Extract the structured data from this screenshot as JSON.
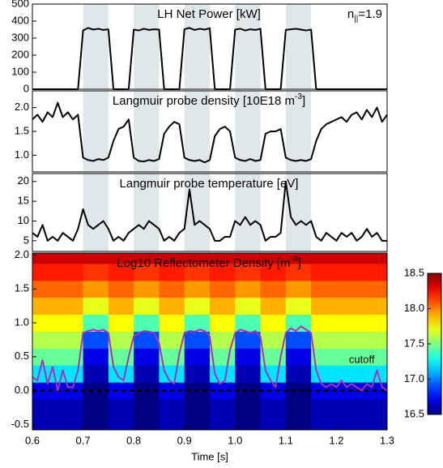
{
  "chart_data": [
    {
      "type": "line",
      "title": "LH Net Power [kW]",
      "annotation": {
        "text": "n",
        "subscript": "||",
        "suffix": "=1.9"
      },
      "xlim": [
        0.6,
        1.3
      ],
      "ylim": [
        0,
        500
      ],
      "yticks": [
        0,
        100,
        200,
        300,
        400,
        500
      ],
      "shaded": [
        [
          0.7,
          0.75
        ],
        [
          0.8,
          0.85
        ],
        [
          0.9,
          0.95
        ],
        [
          1.0,
          1.05
        ],
        [
          1.1,
          1.15
        ]
      ],
      "shade_color": "#dfe7ea",
      "x": [
        0.6,
        0.61,
        0.62,
        0.63,
        0.64,
        0.65,
        0.66,
        0.67,
        0.68,
        0.69,
        0.7,
        0.71,
        0.72,
        0.73,
        0.74,
        0.75,
        0.76,
        0.77,
        0.78,
        0.79,
        0.8,
        0.81,
        0.82,
        0.83,
        0.84,
        0.85,
        0.86,
        0.87,
        0.88,
        0.89,
        0.9,
        0.91,
        0.92,
        0.93,
        0.94,
        0.95,
        0.96,
        0.97,
        0.98,
        0.99,
        1.0,
        1.01,
        1.02,
        1.03,
        1.04,
        1.05,
        1.06,
        1.07,
        1.08,
        1.09,
        1.1,
        1.11,
        1.12,
        1.13,
        1.14,
        1.15,
        1.16,
        1.17,
        1.18,
        1.19,
        1.2,
        1.21,
        1.22,
        1.23,
        1.24,
        1.25,
        1.26,
        1.27,
        1.28,
        1.29,
        1.3
      ],
      "series": [
        {
          "color": "#000000",
          "values": [
            0,
            0,
            0,
            0,
            0,
            0,
            0,
            0,
            0,
            0,
            345,
            360,
            350,
            355,
            348,
            352,
            0,
            0,
            0,
            0,
            350,
            345,
            355,
            348,
            352,
            350,
            0,
            0,
            0,
            0,
            352,
            360,
            348,
            355,
            350,
            358,
            0,
            0,
            0,
            0,
            350,
            355,
            345,
            352,
            348,
            355,
            0,
            0,
            0,
            0,
            348,
            352,
            355,
            350,
            345,
            350,
            0,
            0,
            0,
            0,
            0,
            0,
            0,
            0,
            0,
            0,
            0,
            0,
            0,
            0,
            0
          ]
        }
      ]
    },
    {
      "type": "line",
      "title": {
        "text": "Langmuir probe density [10E18 m",
        "superscript": "-3",
        "suffix": "]"
      },
      "xlim": [
        0.6,
        1.3
      ],
      "ylim": [
        0.65,
        2.35
      ],
      "yticks": [
        {
          "value": 1,
          "label": "1.0"
        },
        1.5,
        {
          "value": 2,
          "label": "2.0"
        }
      ],
      "shaded": [
        [
          0.7,
          0.75
        ],
        [
          0.8,
          0.85
        ],
        [
          0.9,
          0.95
        ],
        [
          1.0,
          1.05
        ],
        [
          1.1,
          1.15
        ]
      ],
      "shade_color": "#dfe7ea",
      "x": [
        0.6,
        0.61,
        0.62,
        0.63,
        0.64,
        0.65,
        0.66,
        0.67,
        0.68,
        0.69,
        0.7,
        0.71,
        0.72,
        0.73,
        0.74,
        0.75,
        0.76,
        0.77,
        0.78,
        0.79,
        0.8,
        0.81,
        0.82,
        0.83,
        0.84,
        0.85,
        0.86,
        0.87,
        0.88,
        0.89,
        0.9,
        0.91,
        0.92,
        0.93,
        0.94,
        0.95,
        0.96,
        0.97,
        0.98,
        0.99,
        1.0,
        1.01,
        1.02,
        1.03,
        1.04,
        1.05,
        1.06,
        1.07,
        1.08,
        1.09,
        1.1,
        1.11,
        1.12,
        1.13,
        1.14,
        1.15,
        1.16,
        1.17,
        1.18,
        1.19,
        1.2,
        1.21,
        1.22,
        1.23,
        1.24,
        1.25,
        1.26,
        1.27,
        1.28,
        1.29,
        1.3
      ],
      "series": [
        {
          "color": "#000000",
          "values": [
            1.75,
            1.85,
            1.7,
            1.9,
            1.8,
            2.1,
            1.8,
            1.9,
            1.75,
            1.85,
            0.95,
            0.9,
            0.88,
            0.92,
            0.9,
            0.95,
            1.3,
            1.55,
            1.6,
            1.75,
            0.95,
            0.88,
            0.87,
            0.9,
            0.88,
            0.92,
            1.45,
            1.6,
            1.7,
            1.65,
            0.95,
            0.9,
            0.88,
            0.9,
            0.85,
            0.9,
            1.4,
            1.55,
            1.6,
            1.5,
            0.95,
            0.9,
            0.88,
            0.92,
            0.88,
            0.9,
            1.45,
            1.5,
            1.5,
            1.55,
            0.95,
            0.9,
            0.88,
            0.9,
            0.88,
            0.92,
            1.3,
            1.55,
            1.65,
            1.7,
            1.75,
            1.8,
            1.7,
            1.85,
            1.9,
            1.75,
            1.95,
            1.8,
            2.0,
            1.7,
            1.85
          ]
        }
      ]
    },
    {
      "type": "line",
      "title": "Langmuir probe temperature [eV]",
      "xlim": [
        0.6,
        1.3
      ],
      "ylim": [
        2.3,
        22
      ],
      "yticks": [
        5,
        10,
        15,
        20
      ],
      "shaded": [
        [
          0.7,
          0.75
        ],
        [
          0.8,
          0.85
        ],
        [
          0.9,
          0.95
        ],
        [
          1.0,
          1.05
        ],
        [
          1.1,
          1.15
        ]
      ],
      "shade_color": "#dfe7ea",
      "x": [
        0.6,
        0.61,
        0.62,
        0.63,
        0.64,
        0.65,
        0.66,
        0.67,
        0.68,
        0.69,
        0.7,
        0.71,
        0.72,
        0.73,
        0.74,
        0.75,
        0.76,
        0.77,
        0.78,
        0.79,
        0.8,
        0.81,
        0.82,
        0.83,
        0.84,
        0.85,
        0.86,
        0.87,
        0.88,
        0.89,
        0.9,
        0.91,
        0.92,
        0.93,
        0.94,
        0.95,
        0.96,
        0.97,
        0.98,
        0.99,
        1.0,
        1.01,
        1.02,
        1.03,
        1.04,
        1.05,
        1.06,
        1.07,
        1.08,
        1.09,
        1.1,
        1.11,
        1.12,
        1.13,
        1.14,
        1.15,
        1.16,
        1.17,
        1.18,
        1.19,
        1.2,
        1.21,
        1.22,
        1.23,
        1.24,
        1.25,
        1.26,
        1.27,
        1.28,
        1.29,
        1.3
      ],
      "series": [
        {
          "color": "#000000",
          "values": [
            7,
            6,
            9,
            5,
            6,
            5,
            7,
            6,
            5,
            8,
            13,
            9,
            8,
            9,
            10,
            8,
            5,
            6,
            5,
            7,
            8,
            9,
            8,
            10,
            9,
            8,
            5,
            6,
            5,
            7,
            8,
            18,
            9,
            10,
            9,
            8,
            5,
            5,
            6,
            6,
            10,
            9,
            11,
            9,
            10,
            9,
            5,
            6,
            6,
            7,
            20,
            11,
            9,
            10,
            9,
            10,
            6,
            5,
            7,
            6,
            5,
            7,
            6,
            7,
            5,
            6,
            8,
            6,
            7,
            5,
            5
          ]
        }
      ]
    },
    {
      "type": "heatmap",
      "title": {
        "text": "Log10 Reflectometer Density [m",
        "superscript": "-3",
        "suffix": "]"
      },
      "xlim": [
        0.6,
        1.3
      ],
      "xticks": [
        0.6,
        0.7,
        0.8,
        0.9,
        {
          "value": 1,
          "label": "1.0"
        },
        1.1,
        1.2,
        1.3
      ],
      "xlabel": "Time [s]",
      "ylim": [
        -0.58,
        2.03
      ],
      "yticks": [
        -0.5,
        {
          "value": 0,
          "label": "0.0"
        },
        0.5,
        {
          "value": 1,
          "label": "1.0"
        },
        1.5,
        {
          "value": 2,
          "label": "2.0"
        }
      ],
      "colormap": "jet",
      "zlim": [
        16.5,
        18.5
      ],
      "zticks": [
        16.5,
        {
          "value": 17,
          "label": "17.0"
        },
        17.5,
        {
          "value": 18,
          "label": "18.0"
        },
        18.5
      ],
      "hline": 0,
      "grid_x": [
        0.6125,
        0.6375,
        0.6625,
        0.6875,
        0.7125,
        0.7375,
        0.7625,
        0.7875,
        0.8125,
        0.8375,
        0.8625,
        0.8875,
        0.9125,
        0.9375,
        0.9625,
        0.9875,
        1.0125,
        1.0375,
        1.0625,
        1.0875,
        1.1125,
        1.1375,
        1.1625,
        1.1875,
        1.2125,
        1.2375,
        1.2625,
        1.2875
      ],
      "grid_y": [
        -0.5,
        -0.25,
        0,
        0.25,
        0.5,
        0.75,
        1.0,
        1.25,
        1.5,
        1.75,
        2.0
      ],
      "z": [
        [
          16.6,
          16.6,
          16.6,
          16.6,
          16.5,
          16.5,
          16.6,
          16.6,
          16.5,
          16.5,
          16.6,
          16.6,
          16.5,
          16.5,
          16.6,
          16.6,
          16.5,
          16.5,
          16.6,
          16.6,
          16.5,
          16.5,
          16.6,
          16.6,
          16.6,
          16.6,
          16.6,
          16.6
        ],
        [
          16.6,
          16.6,
          16.6,
          16.6,
          16.5,
          16.5,
          16.6,
          16.6,
          16.5,
          16.5,
          16.6,
          16.6,
          16.5,
          16.5,
          16.6,
          16.6,
          16.5,
          16.5,
          16.6,
          16.6,
          16.5,
          16.5,
          16.6,
          16.6,
          16.6,
          16.6,
          16.6,
          16.6
        ],
        [
          16.7,
          16.7,
          16.7,
          16.7,
          16.5,
          16.5,
          16.7,
          16.7,
          16.5,
          16.5,
          16.7,
          16.7,
          16.5,
          16.5,
          16.7,
          16.7,
          16.5,
          16.5,
          16.7,
          16.7,
          16.5,
          16.5,
          16.7,
          16.7,
          16.7,
          16.7,
          16.7,
          16.7
        ],
        [
          17.2,
          17.2,
          17.2,
          17.2,
          16.6,
          16.6,
          17.2,
          17.2,
          16.6,
          16.6,
          17.2,
          17.2,
          16.6,
          16.6,
          17.2,
          17.2,
          16.6,
          16.6,
          17.2,
          17.2,
          16.6,
          16.6,
          17.2,
          17.2,
          17.2,
          17.2,
          17.2,
          17.2
        ],
        [
          17.45,
          17.45,
          17.45,
          17.45,
          16.7,
          16.7,
          17.45,
          17.45,
          16.7,
          16.7,
          17.45,
          17.45,
          16.7,
          16.7,
          17.45,
          17.45,
          16.7,
          16.7,
          17.45,
          17.45,
          16.7,
          16.7,
          17.45,
          17.45,
          17.45,
          17.45,
          17.45,
          17.45
        ],
        [
          17.6,
          17.6,
          17.6,
          17.6,
          16.9,
          16.9,
          17.6,
          17.6,
          16.9,
          16.9,
          17.6,
          17.6,
          16.9,
          16.9,
          17.6,
          17.6,
          16.9,
          16.9,
          17.6,
          17.6,
          16.9,
          16.9,
          17.6,
          17.6,
          17.6,
          17.6,
          17.6,
          17.6
        ],
        [
          17.75,
          17.75,
          17.75,
          17.75,
          17.4,
          17.4,
          17.75,
          17.75,
          17.4,
          17.4,
          17.75,
          17.75,
          17.4,
          17.4,
          17.75,
          17.75,
          17.4,
          17.4,
          17.75,
          17.75,
          17.4,
          17.4,
          17.75,
          17.75,
          17.75,
          17.75,
          17.75,
          17.75
        ],
        [
          17.9,
          17.9,
          17.9,
          17.9,
          17.7,
          17.7,
          17.9,
          17.9,
          17.7,
          17.7,
          17.9,
          17.9,
          17.7,
          17.7,
          17.9,
          17.9,
          17.7,
          17.7,
          17.9,
          17.9,
          17.7,
          17.7,
          17.9,
          17.9,
          17.9,
          17.9,
          17.9,
          17.9
        ],
        [
          18.05,
          18.05,
          18.05,
          18.05,
          17.95,
          17.95,
          18.05,
          18.05,
          17.95,
          17.95,
          18.05,
          18.05,
          17.95,
          17.95,
          18.05,
          18.05,
          17.95,
          17.95,
          18.05,
          18.05,
          17.95,
          17.95,
          18.05,
          18.05,
          18.05,
          18.05,
          18.05,
          18.05
        ],
        [
          18.2,
          18.2,
          18.2,
          18.2,
          18.15,
          18.15,
          18.2,
          18.2,
          18.15,
          18.15,
          18.2,
          18.2,
          18.15,
          18.15,
          18.2,
          18.2,
          18.15,
          18.15,
          18.2,
          18.2,
          18.15,
          18.15,
          18.2,
          18.2,
          18.2,
          18.2,
          18.2,
          18.2
        ],
        [
          18.35,
          18.35,
          18.35,
          18.35,
          18.35,
          18.35,
          18.35,
          18.35,
          18.35,
          18.35,
          18.35,
          18.35,
          18.35,
          18.35,
          18.35,
          18.35,
          18.35,
          18.35,
          18.35,
          18.35,
          18.35,
          18.35,
          18.35,
          18.35,
          18.35,
          18.35,
          18.35,
          18.35
        ]
      ],
      "x": [
        0.6,
        0.61,
        0.62,
        0.63,
        0.64,
        0.65,
        0.66,
        0.67,
        0.68,
        0.69,
        0.7,
        0.71,
        0.72,
        0.73,
        0.74,
        0.75,
        0.76,
        0.77,
        0.78,
        0.79,
        0.8,
        0.81,
        0.82,
        0.83,
        0.84,
        0.85,
        0.86,
        0.87,
        0.88,
        0.89,
        0.9,
        0.91,
        0.92,
        0.93,
        0.94,
        0.95,
        0.96,
        0.97,
        0.98,
        0.99,
        1.0,
        1.01,
        1.02,
        1.03,
        1.04,
        1.05,
        1.06,
        1.07,
        1.08,
        1.09,
        1.1,
        1.11,
        1.12,
        1.13,
        1.14,
        1.15,
        1.16,
        1.17,
        1.18,
        1.19,
        1.2,
        1.21,
        1.22,
        1.23,
        1.24,
        1.25,
        1.26,
        1.27,
        1.28,
        1.29,
        1.3
      ],
      "series": [
        {
          "name": "cutoff",
          "color": "#b030b0",
          "values": [
            0.2,
            0.15,
            0.45,
            0.1,
            0.35,
            0.0,
            0.3,
            0.05,
            0.05,
            0.3,
            0.85,
            0.88,
            0.9,
            0.88,
            0.9,
            0.85,
            0.35,
            0.2,
            0.15,
            0.5,
            0.8,
            0.85,
            0.88,
            0.87,
            0.85,
            0.7,
            0.3,
            0.15,
            0.1,
            0.55,
            0.85,
            0.88,
            0.87,
            0.9,
            0.88,
            0.8,
            0.25,
            0.1,
            0.15,
            0.6,
            0.85,
            0.9,
            0.88,
            0.85,
            0.88,
            0.8,
            0.3,
            0.15,
            0.05,
            0.5,
            0.85,
            0.92,
            0.88,
            0.95,
            0.9,
            0.85,
            0.3,
            0.1,
            0.05,
            0.1,
            0.05,
            0.15,
            0.05,
            0.1,
            0.05,
            0.0,
            0.1,
            0.05,
            0.3,
            0.05,
            0.0
          ]
        }
      ]
    }
  ]
}
